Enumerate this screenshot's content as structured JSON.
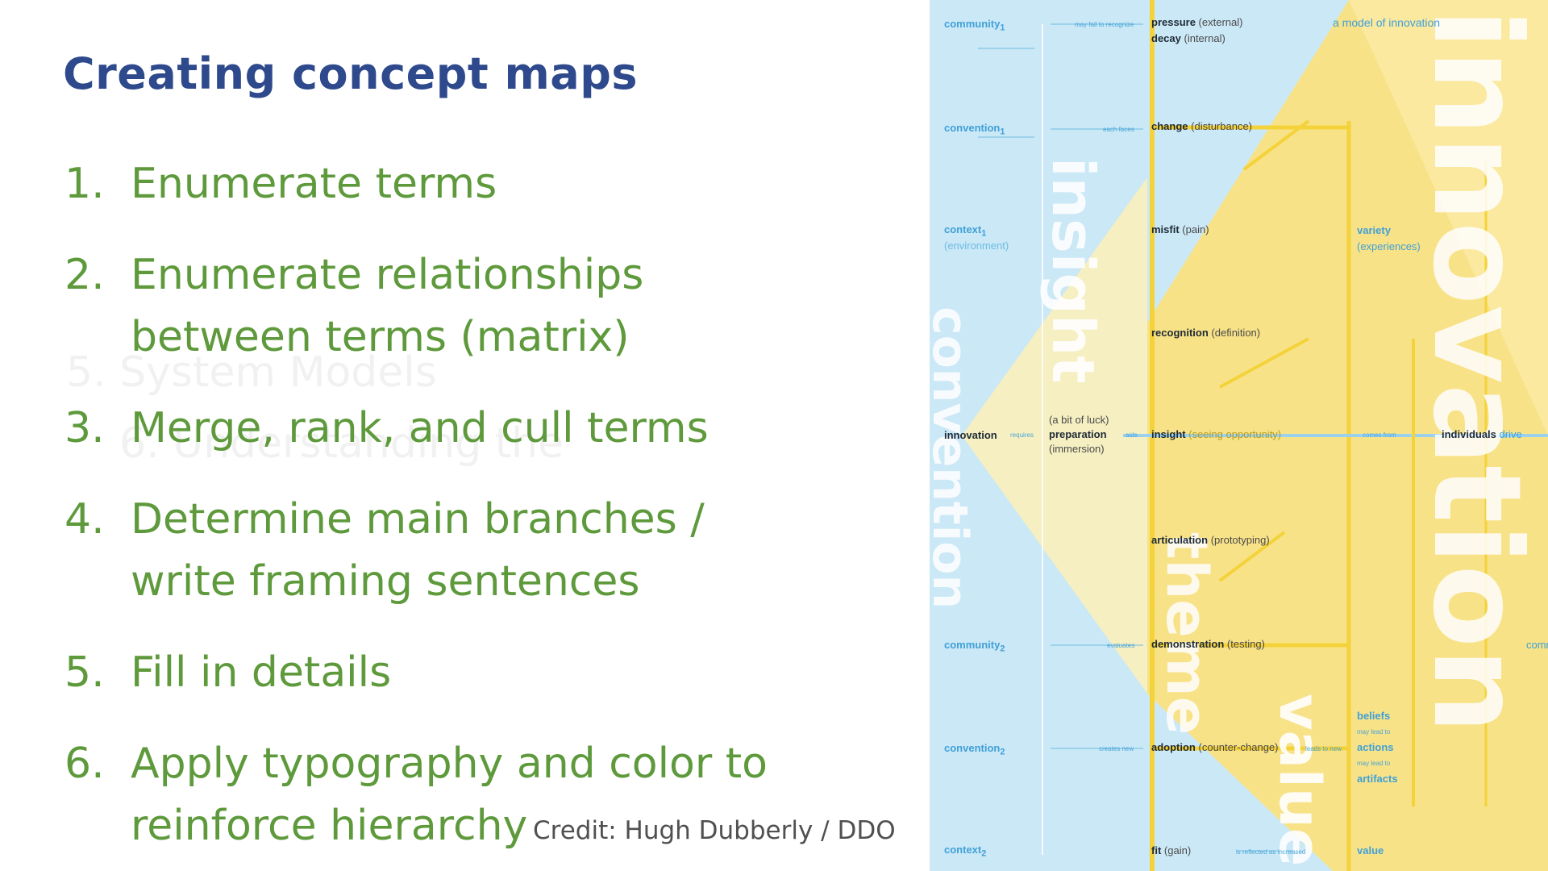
{
  "slide": {
    "title": "Creating concept maps",
    "steps": [
      {
        "num": "1.",
        "lines": [
          "Enumerate terms"
        ]
      },
      {
        "num": "2.",
        "lines": [
          "Enumerate relationships",
          "between terms (matrix)"
        ]
      },
      {
        "num": "3.",
        "lines": [
          "Merge, rank, and cull terms"
        ]
      },
      {
        "num": "4.",
        "lines": [
          "Determine main branches /",
          "write framing sentences"
        ]
      },
      {
        "num": "5.",
        "lines": [
          "Fill in details"
        ]
      },
      {
        "num": "6.",
        "lines": [
          "Apply typography and color to",
          "reinforce hierarchy"
        ]
      }
    ],
    "ghost_text": [
      "5. System Models",
      "6. Understanding the"
    ],
    "credit": "Credit: Hugh Dubberly / DDO"
  },
  "poster": {
    "colors": {
      "blue": "#cbe8f6",
      "yellow": "#f8e288",
      "accent": "#3fa0d8",
      "stroke": "#f4d23a"
    },
    "left_nodes": [
      {
        "main": "community",
        "sub": "1",
        "paren": ""
      },
      {
        "main": "convention",
        "sub": "1",
        "paren": ""
      },
      {
        "main": "context",
        "sub": "1",
        "paren": "(environment)"
      },
      {
        "main": "innovation",
        "sub": "",
        "paren": ""
      },
      {
        "main": "community",
        "sub": "2",
        "paren": ""
      },
      {
        "main": "convention",
        "sub": "2",
        "paren": ""
      },
      {
        "main": "context",
        "sub": "2",
        "paren": ""
      }
    ],
    "center_nodes": [
      {
        "main": "pressure",
        "paren": "(external)"
      },
      {
        "main": "decay",
        "paren": "(internal)"
      },
      {
        "main": "change",
        "paren": "(disturbance)"
      },
      {
        "main": "misfit",
        "paren": "(pain)"
      },
      {
        "main": "recognition",
        "paren": "(definition)"
      },
      {
        "main": "insight",
        "paren": "(seeing opportunity)"
      },
      {
        "main": "articulation",
        "paren": "(prototyping)"
      },
      {
        "main": "demonstration",
        "paren": "(testing)"
      },
      {
        "main": "adoption",
        "paren": "(counter-change)"
      },
      {
        "main": "fit",
        "paren": "(gain)"
      }
    ],
    "prep": {
      "pre": "(a bit of luck)",
      "main": "preparation",
      "paren": "(immersion)"
    },
    "right_nodes": [
      {
        "main": "variety",
        "paren": "(experiences)"
      },
      {
        "main": "individuals",
        "paren": "drive"
      },
      {
        "main": "beliefs",
        "paren": "may lead to"
      },
      {
        "main": "actions",
        "paren": "may lead to"
      },
      {
        "main": "artifacts",
        "paren": ""
      },
      {
        "main": "value",
        "paren": ""
      }
    ],
    "model_title": "a model of innovation",
    "links": [
      "requires",
      "aids",
      "comes from",
      "may fail to recognize",
      "each faces",
      "evaluates",
      "creates new",
      "is reflected as increased",
      "leads to new"
    ],
    "big_words": [
      "convention",
      "insight",
      "theme",
      "value",
      "innovation"
    ],
    "cut_word": "commu"
  }
}
